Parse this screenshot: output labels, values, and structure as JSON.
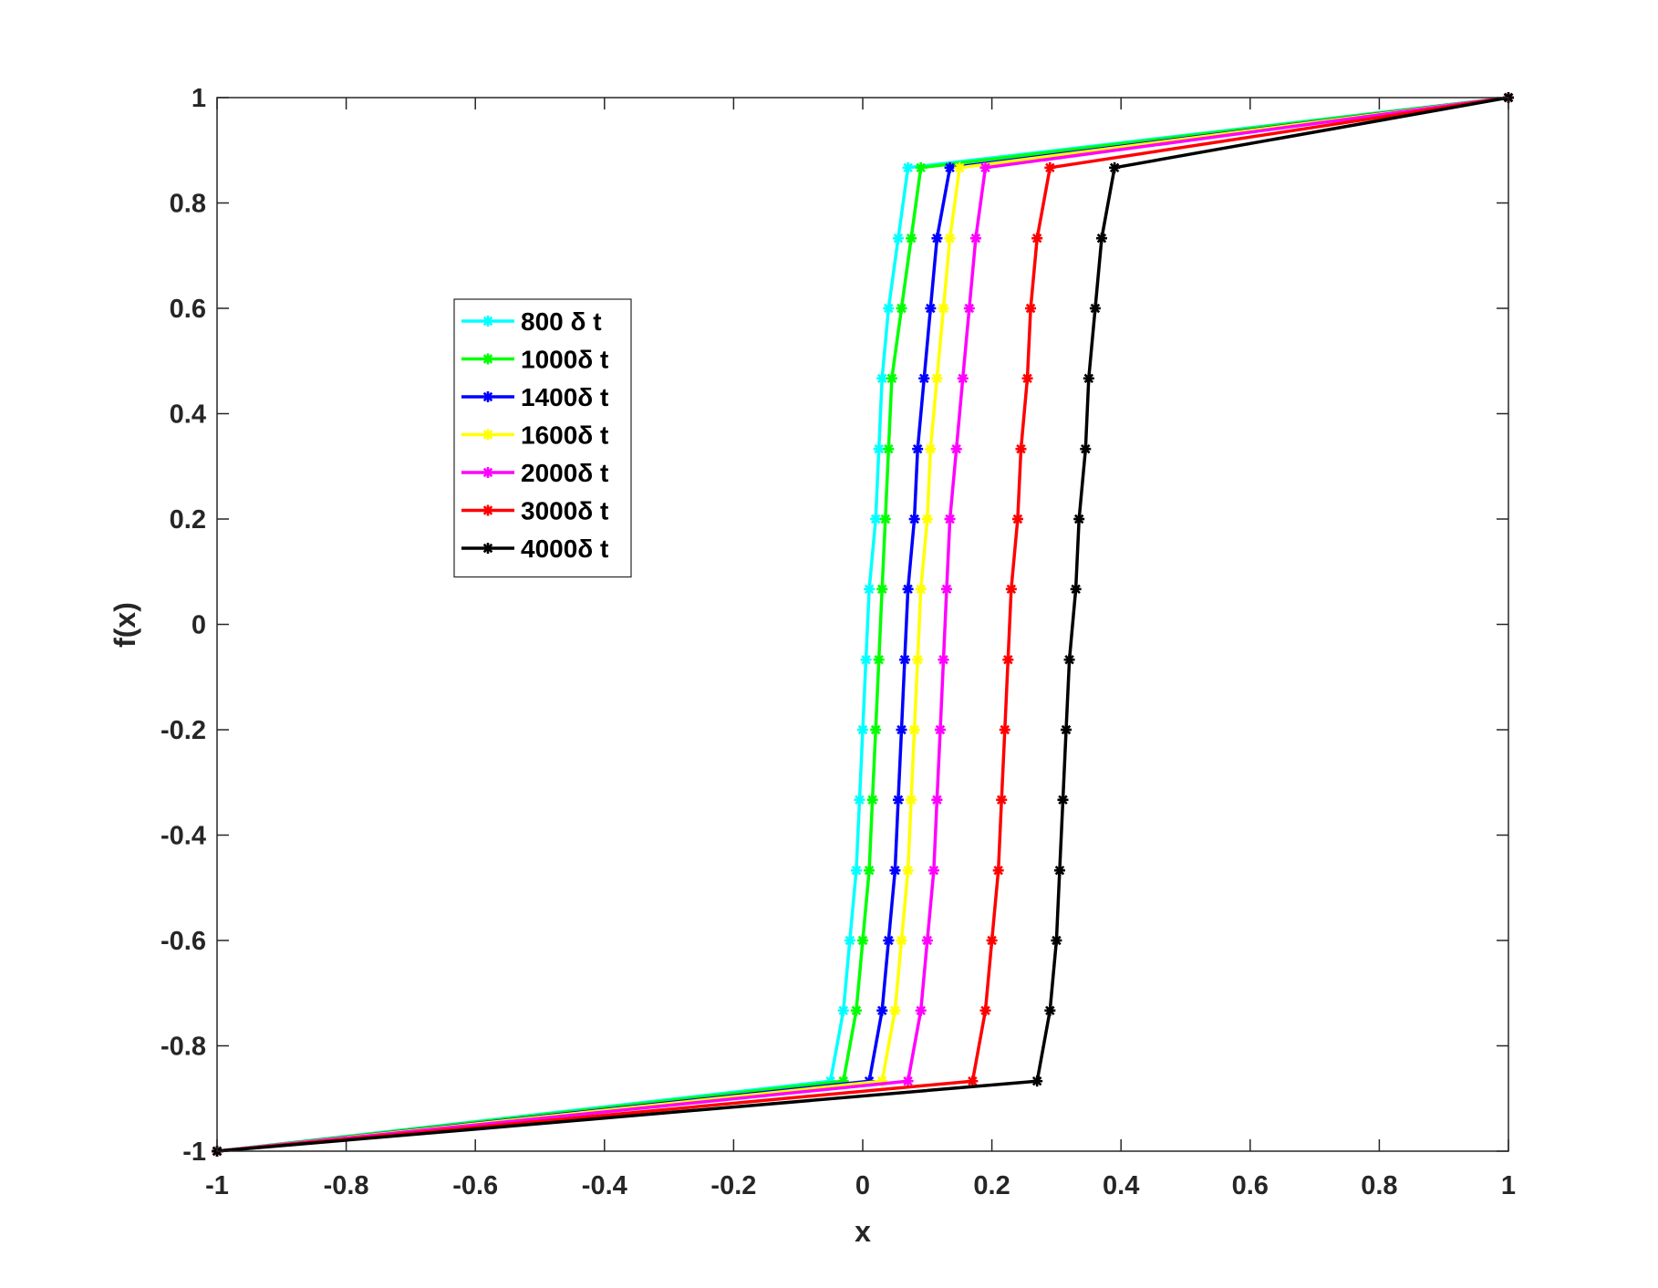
{
  "chart_data": {
    "type": "line",
    "title": "",
    "xlabel": "x",
    "ylabel": "f(x)",
    "xlim": [
      -1,
      1
    ],
    "ylim": [
      -1,
      1
    ],
    "xticks": [
      "-1",
      "-0.8",
      "-0.6",
      "-0.4",
      "-0.2",
      "0",
      "0.2",
      "0.4",
      "0.6",
      "0.8",
      "1"
    ],
    "yticks": [
      "1",
      "0.8",
      "0.6",
      "0.4",
      "0.2",
      "0",
      "-0.2",
      "-0.4",
      "-0.6",
      "-0.8",
      "-1"
    ],
    "grid": false,
    "legend_position": "upper-left",
    "marker": "asterisk",
    "y": [
      -1,
      -0.867,
      -0.733,
      -0.6,
      -0.467,
      -0.333,
      -0.2,
      -0.067,
      0.067,
      0.2,
      0.333,
      0.467,
      0.6,
      0.733,
      0.867,
      1
    ],
    "series": [
      {
        "name": "800   δ t",
        "color": "#00ffff",
        "x": [
          -1,
          -0.05,
          -0.03,
          -0.02,
          -0.01,
          -0.005,
          0,
          0.005,
          0.01,
          0.02,
          0.025,
          0.03,
          0.04,
          0.055,
          0.07,
          1
        ]
      },
      {
        "name": "1000δ t",
        "color": "#00ff00",
        "x": [
          -1,
          -0.03,
          -0.01,
          0,
          0.01,
          0.015,
          0.02,
          0.025,
          0.03,
          0.035,
          0.04,
          0.045,
          0.06,
          0.075,
          0.09,
          1
        ]
      },
      {
        "name": "1400δ t",
        "color": "#0000ff",
        "x": [
          -1,
          0.01,
          0.03,
          0.04,
          0.05,
          0.055,
          0.06,
          0.065,
          0.07,
          0.08,
          0.085,
          0.095,
          0.105,
          0.115,
          0.135,
          1
        ]
      },
      {
        "name": "1600δ t",
        "color": "#ffff00",
        "x": [
          -1,
          0.03,
          0.05,
          0.06,
          0.07,
          0.075,
          0.08,
          0.085,
          0.09,
          0.1,
          0.105,
          0.115,
          0.125,
          0.135,
          0.15,
          1
        ]
      },
      {
        "name": "2000δ t",
        "color": "#ff00ff",
        "x": [
          -1,
          0.07,
          0.09,
          0.1,
          0.11,
          0.115,
          0.12,
          0.125,
          0.13,
          0.135,
          0.145,
          0.155,
          0.165,
          0.175,
          0.19,
          1
        ]
      },
      {
        "name": "3000δ t",
        "color": "#ff0000",
        "x": [
          -1,
          0.17,
          0.19,
          0.2,
          0.21,
          0.215,
          0.22,
          0.225,
          0.23,
          0.24,
          0.245,
          0.255,
          0.26,
          0.27,
          0.29,
          1
        ]
      },
      {
        "name": "4000δ t",
        "color": "#000000",
        "x": [
          -1,
          0.27,
          0.29,
          0.3,
          0.305,
          0.31,
          0.315,
          0.32,
          0.33,
          0.335,
          0.345,
          0.35,
          0.36,
          0.37,
          0.39,
          1
        ]
      }
    ]
  }
}
